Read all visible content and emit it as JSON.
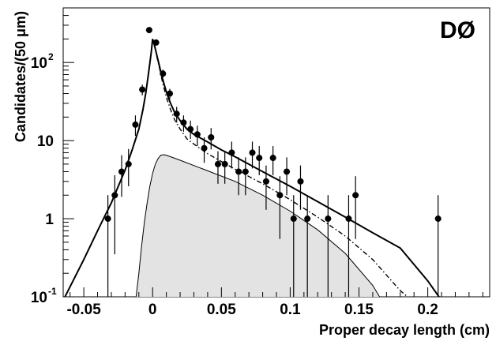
{
  "chart_data": {
    "type": "scatter",
    "title": "",
    "experiment_label": "DØ",
    "xlabel": "Proper decay length (cm)",
    "ylabel": "Candidates/(50 μm)",
    "xlim": [
      -0.065,
      0.245
    ],
    "ylim": [
      0.1,
      500
    ],
    "y_scale": "log",
    "x_ticks": [
      -0.05,
      0,
      0.05,
      0.1,
      0.15,
      0.2
    ],
    "x_tick_labels": [
      "-0.05",
      "0",
      "0.05",
      "0.1",
      "0.15",
      "0.2"
    ],
    "y_ticks": [
      {
        "value": 0.1,
        "base": "10",
        "exp": "-1"
      },
      {
        "value": 1,
        "base": "1",
        "exp": ""
      },
      {
        "value": 10,
        "base": "10",
        "exp": ""
      },
      {
        "value": 100,
        "base": "10",
        "exp": "2"
      }
    ],
    "data_points": [
      {
        "x": -0.0325,
        "y": 1,
        "ylo": 0.1,
        "yhi": 2.0
      },
      {
        "x": -0.0275,
        "y": 2,
        "ylo": 0.35,
        "yhi": 3.6
      },
      {
        "x": -0.0225,
        "y": 4,
        "ylo": 1.9,
        "yhi": 6.5
      },
      {
        "x": -0.0175,
        "y": 5,
        "ylo": 2.6,
        "yhi": 7.8
      },
      {
        "x": -0.0125,
        "y": 16,
        "ylo": 11.5,
        "yhi": 21
      },
      {
        "x": -0.0075,
        "y": 45,
        "ylo": 38,
        "yhi": 52
      },
      {
        "x": -0.0025,
        "y": 260,
        "ylo": 244,
        "yhi": 276
      },
      {
        "x": 0.0025,
        "y": 180,
        "ylo": 167,
        "yhi": 193
      },
      {
        "x": 0.0075,
        "y": 72,
        "ylo": 64,
        "yhi": 81
      },
      {
        "x": 0.0125,
        "y": 40,
        "ylo": 34,
        "yhi": 46
      },
      {
        "x": 0.0175,
        "y": 22,
        "ylo": 17,
        "yhi": 27
      },
      {
        "x": 0.0225,
        "y": 17,
        "ylo": 13,
        "yhi": 21
      },
      {
        "x": 0.0275,
        "y": 14,
        "ylo": 10.5,
        "yhi": 18
      },
      {
        "x": 0.0325,
        "y": 12,
        "ylo": 8.5,
        "yhi": 15.5
      },
      {
        "x": 0.0375,
        "y": 8,
        "ylo": 5.2,
        "yhi": 11
      },
      {
        "x": 0.0425,
        "y": 11,
        "ylo": 7.7,
        "yhi": 14.5
      },
      {
        "x": 0.0475,
        "y": 5,
        "ylo": 2.8,
        "yhi": 7.3
      },
      {
        "x": 0.0525,
        "y": 5,
        "ylo": 2.8,
        "yhi": 7.3
      },
      {
        "x": 0.0575,
        "y": 7,
        "ylo": 4.4,
        "yhi": 9.7
      },
      {
        "x": 0.0625,
        "y": 4,
        "ylo": 2.0,
        "yhi": 6.1
      },
      {
        "x": 0.0675,
        "y": 4,
        "ylo": 2.0,
        "yhi": 6.1
      },
      {
        "x": 0.0725,
        "y": 7,
        "ylo": 4.4,
        "yhi": 9.7
      },
      {
        "x": 0.0775,
        "y": 6,
        "ylo": 3.6,
        "yhi": 8.5
      },
      {
        "x": 0.0825,
        "y": 3,
        "ylo": 1.3,
        "yhi": 4.8
      },
      {
        "x": 0.0875,
        "y": 6,
        "ylo": 3.6,
        "yhi": 8.5
      },
      {
        "x": 0.0925,
        "y": 2,
        "ylo": 0.55,
        "yhi": 3.5
      },
      {
        "x": 0.0975,
        "y": 4,
        "ylo": 2.0,
        "yhi": 6.1
      },
      {
        "x": 0.1025,
        "y": 1,
        "ylo": 0.1,
        "yhi": 2.0
      },
      {
        "x": 0.1075,
        "y": 3,
        "ylo": 1.3,
        "yhi": 4.8
      },
      {
        "x": 0.1125,
        "y": 1,
        "ylo": 0.1,
        "yhi": 2.0
      },
      {
        "x": 0.1275,
        "y": 1,
        "ylo": 0.1,
        "yhi": 2.0
      },
      {
        "x": 0.1425,
        "y": 1,
        "ylo": 0.1,
        "yhi": 2.0
      },
      {
        "x": 0.1475,
        "y": 2,
        "ylo": 0.55,
        "yhi": 3.5
      },
      {
        "x": 0.2075,
        "y": 1,
        "ylo": 0.1,
        "yhi": 2.0
      }
    ],
    "curves": [
      {
        "name": "",
        "style": "solid",
        "color": "#000000",
        "x": [
          -0.065,
          -0.05,
          -0.04,
          -0.03,
          -0.02,
          -0.015,
          -0.01,
          -0.007,
          -0.005,
          -0.003,
          -0.001,
          0,
          0.001,
          0.003,
          0.005,
          0.007,
          0.01,
          0.013,
          0.016,
          0.02,
          0.025,
          0.03,
          0.04,
          0.05,
          0.06,
          0.08,
          0.1,
          0.12,
          0.14,
          0.16,
          0.18,
          0.2,
          0.21
        ],
        "y": [
          0.09,
          0.3,
          0.7,
          1.6,
          4.2,
          7.5,
          14,
          25,
          40,
          72,
          135,
          200,
          175,
          125,
          90,
          64,
          42,
          30,
          23,
          18,
          14,
          12,
          9.6,
          7.6,
          6.2,
          4.0,
          2.6,
          1.65,
          1.05,
          0.66,
          0.42,
          0.16,
          0.09
        ]
      },
      {
        "name": "",
        "style": "dashdot",
        "color": "#000000",
        "x": [
          0.003,
          0.005,
          0.007,
          0.01,
          0.013,
          0.016,
          0.02,
          0.025,
          0.03,
          0.04,
          0.05,
          0.06,
          0.08,
          0.1,
          0.12,
          0.14,
          0.16,
          0.18,
          0.19
        ],
        "y": [
          120,
          85,
          58,
          36,
          25,
          18.5,
          14,
          10.5,
          9,
          6.8,
          5.4,
          4.3,
          2.8,
          1.75,
          1.05,
          0.6,
          0.3,
          0.12,
          0.085
        ]
      },
      {
        "name": "",
        "style": "filled",
        "color": "#000000",
        "fill": "#e3e3e3",
        "x": [
          -0.012,
          -0.01,
          -0.008,
          -0.006,
          -0.004,
          -0.002,
          0,
          0.002,
          0.004,
          0.006,
          0.008,
          0.01,
          0.02,
          0.04,
          0.06,
          0.08,
          0.1,
          0.12,
          0.14,
          0.16,
          0.165
        ],
        "y": [
          0.1,
          0.2,
          0.45,
          0.9,
          1.6,
          2.6,
          3.8,
          5.0,
          5.9,
          6.5,
          6.6,
          6.5,
          5.6,
          4.1,
          3.0,
          2.0,
          1.25,
          0.72,
          0.36,
          0.14,
          0.1
        ]
      }
    ]
  }
}
